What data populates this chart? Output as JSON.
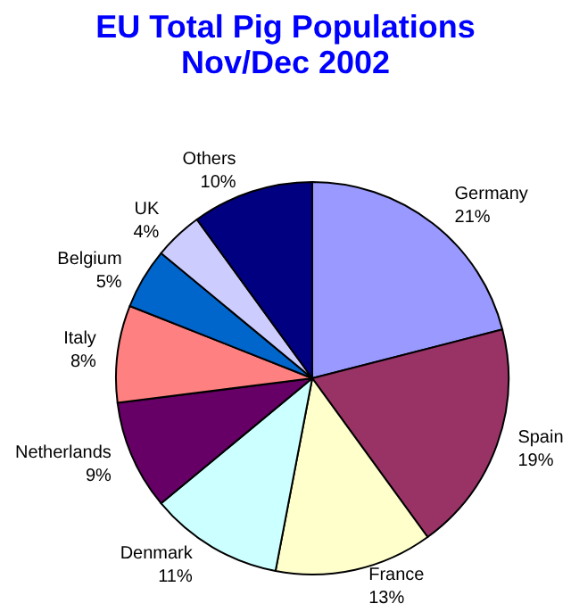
{
  "chart_data": {
    "type": "pie",
    "title": "EU Total Pig Populations\nNov/Dec 2002",
    "categories": [
      "Germany",
      "Spain",
      "France",
      "Denmark",
      "Netherlands",
      "Italy",
      "Belgium",
      "UK",
      "Others"
    ],
    "values": [
      21,
      19,
      13,
      11,
      9,
      8,
      5,
      4,
      10
    ],
    "colors": [
      "#9999ff",
      "#993366",
      "#ffffcc",
      "#ccffff",
      "#660066",
      "#ff8080",
      "#0066cc",
      "#ccccff",
      "#000080"
    ],
    "value_labels": [
      "21%",
      "19%",
      "13%",
      "11%",
      "9%",
      "8%",
      "5%",
      "4%",
      "10%"
    ],
    "legend": false
  }
}
